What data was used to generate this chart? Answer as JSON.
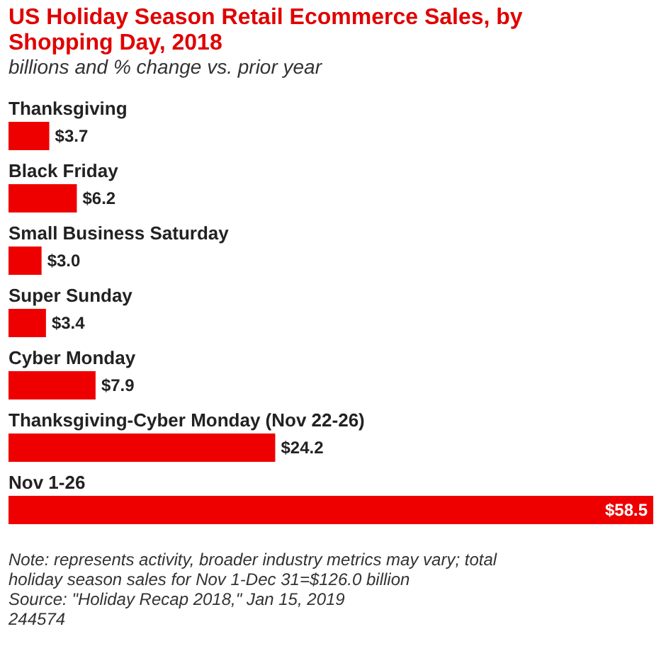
{
  "chart_data": {
    "type": "bar",
    "orientation": "horizontal",
    "title": "US Holiday Season Retail Ecommerce Sales, by Shopping Day, 2018",
    "subtitle": "billions and % change vs. prior year",
    "categories": [
      "Thanksgiving",
      "Black Friday",
      "Small Business Saturday",
      "Super Sunday",
      "Cyber Monday",
      "Thanksgiving-Cyber Monday (Nov 22-26)",
      "Nov 1-26"
    ],
    "values": [
      3.7,
      6.2,
      3.0,
      3.4,
      7.9,
      24.2,
      58.5
    ],
    "value_labels": [
      "$3.7",
      "$6.2",
      "$3.0",
      "$3.4",
      "$7.9",
      "$24.2",
      "$58.5"
    ],
    "color": "#ee0000",
    "annotations": [
      "Note: represents activity, broader industry metrics may vary; total holiday season sales for Nov 1-Dec 31=$126.0 billion",
      "Source: \"Holiday Recap 2018,\" Jan 15, 2019",
      "244574"
    ]
  }
}
